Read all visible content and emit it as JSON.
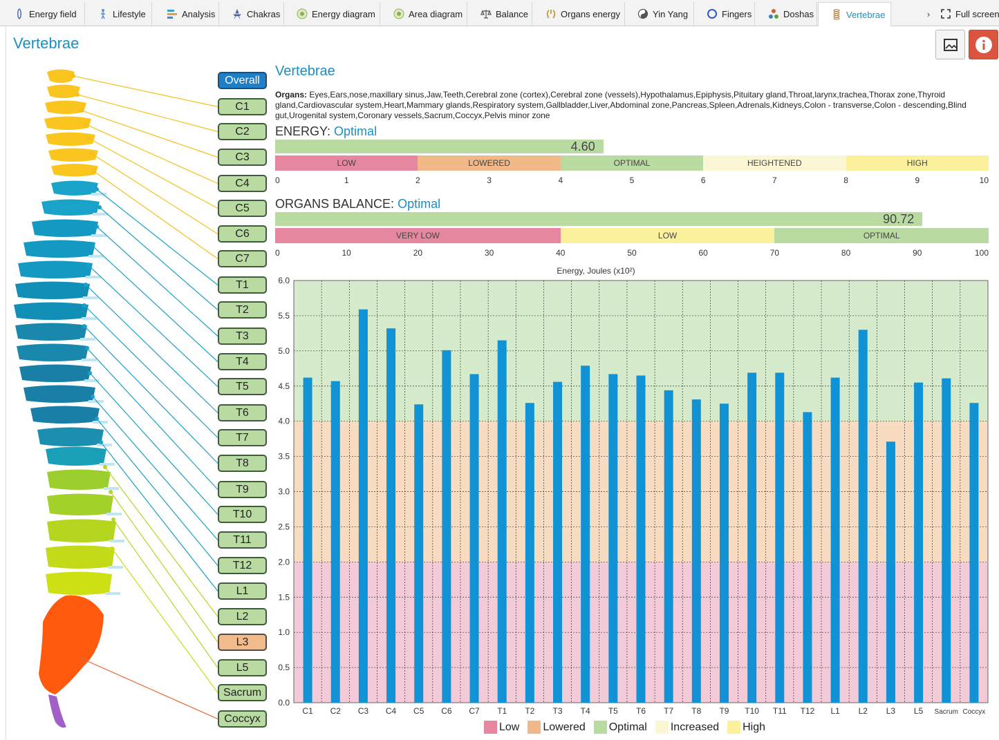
{
  "tabs": [
    {
      "label": "Energy field",
      "icon": "energy-field-icon"
    },
    {
      "label": "Lifestyle",
      "icon": "lifestyle-icon"
    },
    {
      "label": "Analysis",
      "icon": "analysis-icon"
    },
    {
      "label": "Chakras",
      "icon": "chakras-icon"
    },
    {
      "label": "Energy diagram",
      "icon": "energy-diagram-icon"
    },
    {
      "label": "Area diagram",
      "icon": "area-diagram-icon"
    },
    {
      "label": "Balance",
      "icon": "balance-icon"
    },
    {
      "label": "Organs energy",
      "icon": "organs-energy-icon"
    },
    {
      "label": "Yin Yang",
      "icon": "yin-yang-icon"
    },
    {
      "label": "Fingers",
      "icon": "fingers-icon"
    },
    {
      "label": "Doshas",
      "icon": "doshas-icon"
    },
    {
      "label": "Vertebrae",
      "icon": "vertebrae-icon",
      "active": true
    }
  ],
  "tab_more": "›",
  "fullscreen_label": "Full screen",
  "page_title": "Vertebrae",
  "segments": [
    "Overall",
    "C1",
    "C2",
    "C3",
    "C4",
    "C5",
    "C6",
    "C7",
    "T1",
    "T2",
    "T3",
    "T4",
    "T5",
    "T6",
    "T7",
    "T8",
    "T9",
    "T10",
    "T11",
    "T12",
    "L1",
    "L2",
    "L3",
    "L5",
    "Sacrum",
    "Coccyx"
  ],
  "selected_segment": "Overall",
  "low_segment": "L3",
  "section_title": "Vertebrae",
  "organs_label": "Organs:",
  "organs_text": " Eyes,Ears,nose,maxillary sinus,Jaw,Teeth,Cerebral zone (cortex),Cerebral zone (vessels),Hypothalamus,Epiphysis,Pituitary gland,Throat,larynx,trachea,Thorax zone,Thyroid gland,Cardiovascular system,Heart,Mammary glands,Respiratory system,Gallbladder,Liver,Abdominal zone,Pancreas,Spleen,Adrenals,Kidneys,Colon - transverse,Colon - descending,Blind gut,Urogenital system,Coronary vessels,Sacrum,Coccyx,Pelvis minor zone",
  "energy": {
    "label": "ENERGY:",
    "status": "Optimal",
    "value": 4.6,
    "value_text": "4.60",
    "max": 10,
    "scale": [
      {
        "label": "LOW",
        "from": 0,
        "to": 2,
        "color": "#e5879f"
      },
      {
        "label": "LOWERED",
        "from": 2,
        "to": 4,
        "color": "#f1b888"
      },
      {
        "label": "OPTIMAL",
        "from": 4,
        "to": 6,
        "color": "#b9dba2"
      },
      {
        "label": "HEIGHTENED",
        "from": 6,
        "to": 8,
        "color": "#fbf6d3"
      },
      {
        "label": "HIGH",
        "from": 8,
        "to": 10,
        "color": "#fbf19d"
      }
    ],
    "ticks": [
      "0",
      "1",
      "2",
      "3",
      "4",
      "5",
      "6",
      "7",
      "8",
      "9",
      "10"
    ]
  },
  "balance": {
    "label": "ORGANS BALANCE:",
    "status": "Optimal",
    "value": 90.72,
    "value_text": "90.72",
    "max": 100,
    "scale": [
      {
        "label": "VERY LOW",
        "from": 0,
        "to": 40,
        "color": "#e5879f"
      },
      {
        "label": "LOW",
        "from": 40,
        "to": 70,
        "color": "#fbf19d"
      },
      {
        "label": "OPTIMAL",
        "from": 70,
        "to": 100,
        "color": "#b9dba2"
      }
    ],
    "ticks": [
      "0",
      "10",
      "20",
      "30",
      "40",
      "50",
      "60",
      "70",
      "80",
      "90",
      "100"
    ]
  },
  "chart_data": {
    "type": "bar",
    "title": "Energy, Joules (x10²)",
    "categories": [
      "C1",
      "C2",
      "C3",
      "C4",
      "C5",
      "C6",
      "C7",
      "T1",
      "T2",
      "T3",
      "T4",
      "T5",
      "T6",
      "T7",
      "T8",
      "T9",
      "T10",
      "T11",
      "T12",
      "L1",
      "L2",
      "L3",
      "L5",
      "Sacrum",
      "Coccyx"
    ],
    "values": [
      4.62,
      4.57,
      5.59,
      5.32,
      4.24,
      5.01,
      4.67,
      5.15,
      4.26,
      4.56,
      4.79,
      4.67,
      4.65,
      4.44,
      4.31,
      4.25,
      4.69,
      4.69,
      4.13,
      4.62,
      5.3,
      3.71,
      4.55,
      4.61,
      4.26
    ],
    "ylim": [
      0,
      6
    ],
    "yticks": [
      "0.0",
      "0.5",
      "1.0",
      "1.5",
      "2.0",
      "2.5",
      "3.0",
      "3.5",
      "4.0",
      "4.5",
      "5.0",
      "5.5",
      "6.0"
    ],
    "bands": [
      {
        "from": 0,
        "to": 2,
        "color": "#f3cbd8"
      },
      {
        "from": 2,
        "to": 4,
        "color": "#f7dcc2"
      },
      {
        "from": 4,
        "to": 6,
        "color": "#d6ebcb"
      }
    ],
    "bar_color": "#1192d4",
    "grid": true,
    "legend": [
      {
        "label": "Low",
        "color": "#e5879f"
      },
      {
        "label": "Lowered",
        "color": "#f1b888"
      },
      {
        "label": "Optimal",
        "color": "#b9dba2"
      },
      {
        "label": "Increased",
        "color": "#fbf6d3"
      },
      {
        "label": "High",
        "color": "#fbf19d"
      }
    ],
    "legend_position": "bottom-center"
  }
}
